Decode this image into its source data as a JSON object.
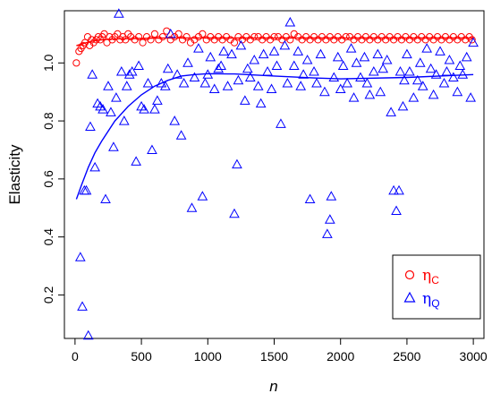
{
  "chart_data": {
    "type": "scatter",
    "xlabel": "n",
    "ylabel": "Elasticity",
    "xlim": [
      -80,
      3080
    ],
    "ylim": [
      0.05,
      1.18
    ],
    "x_ticks": [
      "0",
      "500",
      "1000",
      "1500",
      "2000",
      "2500",
      "3000"
    ],
    "x_tick_values": [
      0,
      500,
      1000,
      1500,
      2000,
      2500,
      3000
    ],
    "y_ticks": [
      "0.2",
      "0.4",
      "0.6",
      "0.8",
      "1.0"
    ],
    "y_tick_values": [
      0.2,
      0.4,
      0.6,
      0.8,
      1.0
    ],
    "grid": false,
    "legend_position": "bottom-right",
    "series": [
      {
        "name": "η_C",
        "legend_symbol": "η",
        "legend_subscript": "C",
        "marker": "circle",
        "color": "#ff0000",
        "x": [
          10,
          30,
          45,
          60,
          75,
          95,
          110,
          125,
          140,
          160,
          175,
          190,
          205,
          220,
          240,
          260,
          280,
          300,
          320,
          340,
          360,
          380,
          400,
          420,
          450,
          480,
          510,
          540,
          570,
          600,
          630,
          660,
          690,
          720,
          750,
          780,
          810,
          840,
          870,
          900,
          930,
          960,
          990,
          1020,
          1050,
          1080,
          1110,
          1140,
          1170,
          1200,
          1230,
          1260,
          1290,
          1320,
          1350,
          1380,
          1410,
          1440,
          1470,
          1500,
          1530,
          1560,
          1590,
          1620,
          1650,
          1680,
          1710,
          1740,
          1770,
          1800,
          1830,
          1860,
          1890,
          1920,
          1950,
          1980,
          2010,
          2040,
          2070,
          2100,
          2130,
          2160,
          2190,
          2220,
          2250,
          2280,
          2310,
          2340,
          2370,
          2400,
          2430,
          2460,
          2490,
          2520,
          2550,
          2580,
          2610,
          2640,
          2670,
          2700,
          2730,
          2760,
          2790,
          2820,
          2850,
          2880,
          2910,
          2940,
          2970,
          2990
        ],
        "y": [
          1.0,
          1.04,
          1.05,
          1.06,
          1.07,
          1.09,
          1.06,
          1.08,
          1.07,
          1.08,
          1.09,
          1.08,
          1.09,
          1.1,
          1.07,
          1.09,
          1.08,
          1.09,
          1.1,
          1.08,
          1.09,
          1.08,
          1.1,
          1.09,
          1.08,
          1.09,
          1.07,
          1.09,
          1.08,
          1.1,
          1.08,
          1.09,
          1.11,
          1.08,
          1.09,
          1.1,
          1.08,
          1.09,
          1.07,
          1.08,
          1.09,
          1.1,
          1.08,
          1.09,
          1.08,
          1.09,
          1.08,
          1.09,
          1.08,
          1.07,
          1.09,
          1.08,
          1.09,
          1.08,
          1.09,
          1.09,
          1.08,
          1.09,
          1.08,
          1.09,
          1.09,
          1.08,
          1.09,
          1.08,
          1.1,
          1.09,
          1.08,
          1.09,
          1.08,
          1.09,
          1.08,
          1.09,
          1.08,
          1.09,
          1.08,
          1.09,
          1.08,
          1.09,
          1.09,
          1.08,
          1.09,
          1.08,
          1.09,
          1.08,
          1.09,
          1.08,
          1.09,
          1.08,
          1.09,
          1.08,
          1.09,
          1.08,
          1.09,
          1.08,
          1.09,
          1.08,
          1.09,
          1.08,
          1.09,
          1.08,
          1.09,
          1.08,
          1.09,
          1.08,
          1.09,
          1.08,
          1.09,
          1.08,
          1.09,
          1.08
        ]
      },
      {
        "name": "η_Q",
        "legend_symbol": "η",
        "legend_subscript": "Q",
        "marker": "triangle",
        "color": "#0000ff",
        "x": [
          40,
          55,
          70,
          85,
          100,
          115,
          130,
          150,
          170,
          190,
          210,
          230,
          250,
          270,
          290,
          310,
          330,
          350,
          370,
          390,
          410,
          430,
          460,
          480,
          500,
          520,
          550,
          580,
          600,
          620,
          650,
          680,
          700,
          720,
          750,
          770,
          800,
          820,
          850,
          880,
          900,
          930,
          960,
          980,
          1000,
          1020,
          1050,
          1080,
          1100,
          1120,
          1150,
          1180,
          1200,
          1220,
          1230,
          1250,
          1280,
          1300,
          1320,
          1350,
          1380,
          1400,
          1420,
          1450,
          1480,
          1500,
          1520,
          1550,
          1580,
          1600,
          1620,
          1650,
          1680,
          1700,
          1720,
          1750,
          1770,
          1800,
          1820,
          1850,
          1880,
          1900,
          1920,
          1930,
          1950,
          1980,
          2000,
          2020,
          2050,
          2080,
          2100,
          2120,
          2150,
          2180,
          2200,
          2220,
          2250,
          2280,
          2300,
          2320,
          2350,
          2380,
          2400,
          2420,
          2440,
          2450,
          2470,
          2480,
          2500,
          2520,
          2550,
          2580,
          2600,
          2620,
          2650,
          2680,
          2700,
          2720,
          2750,
          2780,
          2800,
          2820,
          2850,
          2880,
          2900,
          2920,
          2950,
          2980,
          3000
        ],
        "y": [
          0.33,
          0.16,
          0.56,
          0.56,
          0.06,
          0.78,
          0.96,
          0.64,
          0.86,
          0.85,
          0.84,
          0.53,
          0.92,
          0.83,
          0.71,
          0.88,
          1.17,
          0.97,
          0.8,
          0.92,
          0.96,
          0.97,
          0.66,
          0.99,
          0.85,
          0.84,
          0.93,
          0.7,
          0.84,
          0.87,
          0.93,
          0.92,
          0.98,
          1.1,
          0.8,
          0.96,
          0.75,
          0.93,
          1.0,
          0.5,
          0.95,
          1.05,
          0.54,
          0.93,
          0.96,
          1.02,
          0.91,
          0.98,
          0.99,
          1.04,
          0.92,
          1.03,
          0.48,
          0.65,
          0.94,
          1.06,
          0.87,
          0.98,
          0.95,
          1.01,
          0.92,
          0.86,
          1.03,
          0.97,
          0.91,
          1.04,
          0.99,
          0.79,
          1.06,
          0.93,
          1.14,
          0.99,
          1.04,
          0.92,
          0.96,
          1.01,
          0.53,
          0.97,
          0.93,
          1.03,
          0.9,
          0.41,
          0.46,
          0.54,
          0.95,
          1.02,
          0.91,
          0.99,
          0.93,
          1.05,
          0.88,
          1.0,
          0.95,
          1.02,
          0.93,
          0.89,
          0.97,
          1.03,
          0.9,
          0.98,
          1.01,
          0.83,
          0.56,
          0.49,
          0.56,
          0.97,
          0.85,
          0.94,
          1.03,
          0.97,
          0.88,
          0.94,
          1.0,
          0.92,
          1.05,
          0.98,
          0.89,
          0.96,
          1.04,
          0.93,
          0.97,
          1.01,
          0.95,
          0.9,
          0.99,
          0.96,
          1.02,
          0.88,
          1.07
        ]
      }
    ],
    "fit_curves": [
      {
        "series": "η_C",
        "color": "#ff0000",
        "x": [
          10,
          50,
          100,
          150,
          200,
          300,
          500,
          700,
          1000,
          1500,
          2000,
          2500,
          3000
        ],
        "y": [
          1.06,
          1.065,
          1.072,
          1.077,
          1.08,
          1.083,
          1.085,
          1.086,
          1.086,
          1.086,
          1.086,
          1.086,
          1.086
        ]
      },
      {
        "series": "η_Q",
        "color": "#0000ff",
        "x": [
          10,
          50,
          100,
          150,
          200,
          300,
          400,
          500,
          600,
          700,
          800,
          900,
          1000,
          1200,
          1500,
          1800,
          2000,
          2500,
          3000
        ],
        "y": [
          0.53,
          0.58,
          0.64,
          0.69,
          0.73,
          0.8,
          0.85,
          0.89,
          0.92,
          0.94,
          0.955,
          0.96,
          0.963,
          0.962,
          0.955,
          0.948,
          0.945,
          0.95,
          0.96
        ]
      }
    ]
  }
}
